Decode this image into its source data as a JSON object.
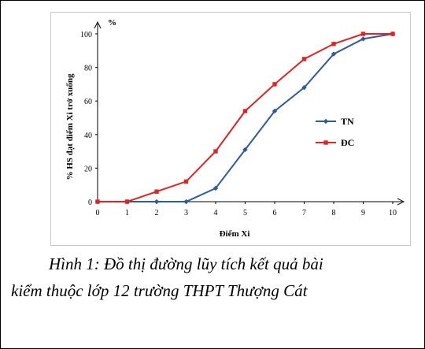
{
  "caption": {
    "line1": "Hình 1: Đồ thị đường lũy tích kết quả bài",
    "line2": "kiểm thuộc lớp 12 trường THPT Thượng Cát"
  },
  "chart_data": {
    "type": "line",
    "title": "",
    "xlabel": "Điểm Xi",
    "ylabel": "% HS đạt điểm Xi trở xuống",
    "yunit": "%",
    "x": [
      0,
      1,
      2,
      3,
      4,
      5,
      6,
      7,
      8,
      9,
      10
    ],
    "xlim": [
      0,
      10
    ],
    "ylim": [
      0,
      100
    ],
    "yticks": [
      0,
      20,
      40,
      60,
      80,
      100
    ],
    "grid": false,
    "legend_position": "right",
    "series": [
      {
        "name": "TN",
        "color": "#2e5b9a",
        "marker": "diamond",
        "values": [
          0,
          0,
          0,
          0,
          8,
          31,
          54,
          68,
          88,
          97,
          100
        ]
      },
      {
        "name": "ĐC",
        "color": "#e02424",
        "marker": "square",
        "values": [
          0,
          0,
          6,
          12,
          30,
          54,
          70,
          85,
          94,
          100,
          100
        ]
      }
    ]
  }
}
